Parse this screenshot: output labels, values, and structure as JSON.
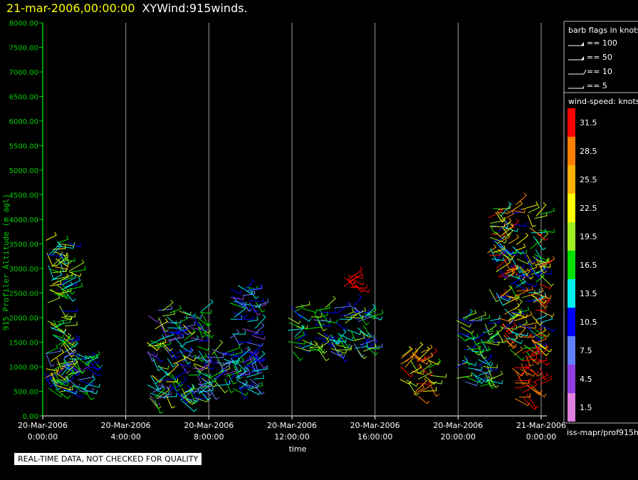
{
  "header": {
    "date": "21-mar-2006,00:00:00",
    "name": "XYWind:915winds."
  },
  "note": "REAL-TIME DATA, NOT CHECKED FOR QUALITY",
  "source": "iss-mapr/prof915h",
  "legend": {
    "barb_title": "barb flags in knots",
    "barbs": [
      {
        "label": "== 100",
        "kind": "pennant"
      },
      {
        "label": "== 50",
        "kind": "pennant"
      },
      {
        "label": "== 10",
        "kind": "full"
      },
      {
        "label": "== 5",
        "kind": "half"
      }
    ],
    "speed_title": "wind-speed: knots",
    "speed_scale": [
      {
        "label": "31.5",
        "color": "#ff0000"
      },
      {
        "label": "28.5",
        "color": "#ff8000"
      },
      {
        "label": "25.5",
        "color": "#ffb000"
      },
      {
        "label": "22.5",
        "color": "#ffff00"
      },
      {
        "label": "19.5",
        "color": "#a0f020"
      },
      {
        "label": "16.5",
        "color": "#00e000"
      },
      {
        "label": "13.5",
        "color": "#00f0f0"
      },
      {
        "label": "10.5",
        "color": "#0000ff"
      },
      {
        "label": "7.5",
        "color": "#6080ff"
      },
      {
        "label": "4.5",
        "color": "#9040e0"
      },
      {
        "label": "1.5",
        "color": "#e080e0"
      }
    ]
  },
  "chart_data": {
    "type": "scatter",
    "ylabel": "915 Profiler Altitude (m agl)",
    "xlabel": "time",
    "ylim": [
      0,
      8000
    ],
    "yticks": [
      "0.00",
      "500.00",
      "1000.00",
      "1500.00",
      "2000.00",
      "2500.00",
      "3000.00",
      "3500.00",
      "4000.00",
      "4500.00",
      "5000.00",
      "5500.00",
      "6000.00",
      "6500.00",
      "7000.00",
      "7500.00",
      "8000.00"
    ],
    "xlim_hours": [
      0,
      24
    ],
    "xticks": [
      {
        "hour": 0,
        "date": "20-Mar-2006",
        "time": "0:00:00"
      },
      {
        "hour": 4,
        "date": "20-Mar-2006",
        "time": "4:00:00"
      },
      {
        "hour": 8,
        "date": "20-Mar-2006",
        "time": "8:00:00"
      },
      {
        "hour": 12,
        "date": "20-Mar-2006",
        "time": "12:00:00"
      },
      {
        "hour": 16,
        "date": "20-Mar-2006",
        "time": "16:00:00"
      },
      {
        "hour": 20,
        "date": "20-Mar-2006",
        "time": "20:00:00"
      },
      {
        "hour": 24,
        "date": "21-Mar-2006",
        "time": "0:00:00"
      }
    ],
    "grid": "vertical",
    "clusters": [
      {
        "hours": [
          0.1,
          1.3
        ],
        "alt_range": [
          450,
          3600
        ],
        "speed_range": [
          10,
          25
        ]
      },
      {
        "hours": [
          0.1,
          2.3
        ],
        "alt_range": [
          450,
          1300
        ],
        "speed_range": [
          5,
          19
        ]
      },
      {
        "hours": [
          5.0,
          7.7
        ],
        "alt_range": [
          300,
          2200
        ],
        "speed_range": [
          4,
          22
        ]
      },
      {
        "hours": [
          7.6,
          9.2
        ],
        "alt_range": [
          550,
          1400
        ],
        "speed_range": [
          3,
          20
        ]
      },
      {
        "hours": [
          9.0,
          10.3
        ],
        "alt_range": [
          450,
          2700
        ],
        "speed_range": [
          5,
          16
        ]
      },
      {
        "hours": [
          11.8,
          15.7
        ],
        "alt_range": [
          1300,
          2250
        ],
        "speed_range": [
          8,
          21
        ]
      },
      {
        "hours": [
          14.4,
          15.0
        ],
        "alt_range": [
          2600,
          2850
        ],
        "speed_range": [
          30,
          33
        ]
      },
      {
        "hours": [
          17.1,
          18.7
        ],
        "alt_range": [
          400,
          1300
        ],
        "speed_range": [
          17,
          31
        ]
      },
      {
        "hours": [
          19.9,
          21.5
        ],
        "alt_range": [
          600,
          2000
        ],
        "speed_range": [
          8,
          21
        ]
      },
      {
        "hours": [
          21.4,
          24.0
        ],
        "alt_range": [
          1300,
          4300
        ],
        "speed_range": [
          9,
          33
        ]
      },
      {
        "hours": [
          22.6,
          24.0
        ],
        "alt_range": [
          350,
          1300
        ],
        "speed_range": [
          28,
          33
        ]
      }
    ]
  }
}
